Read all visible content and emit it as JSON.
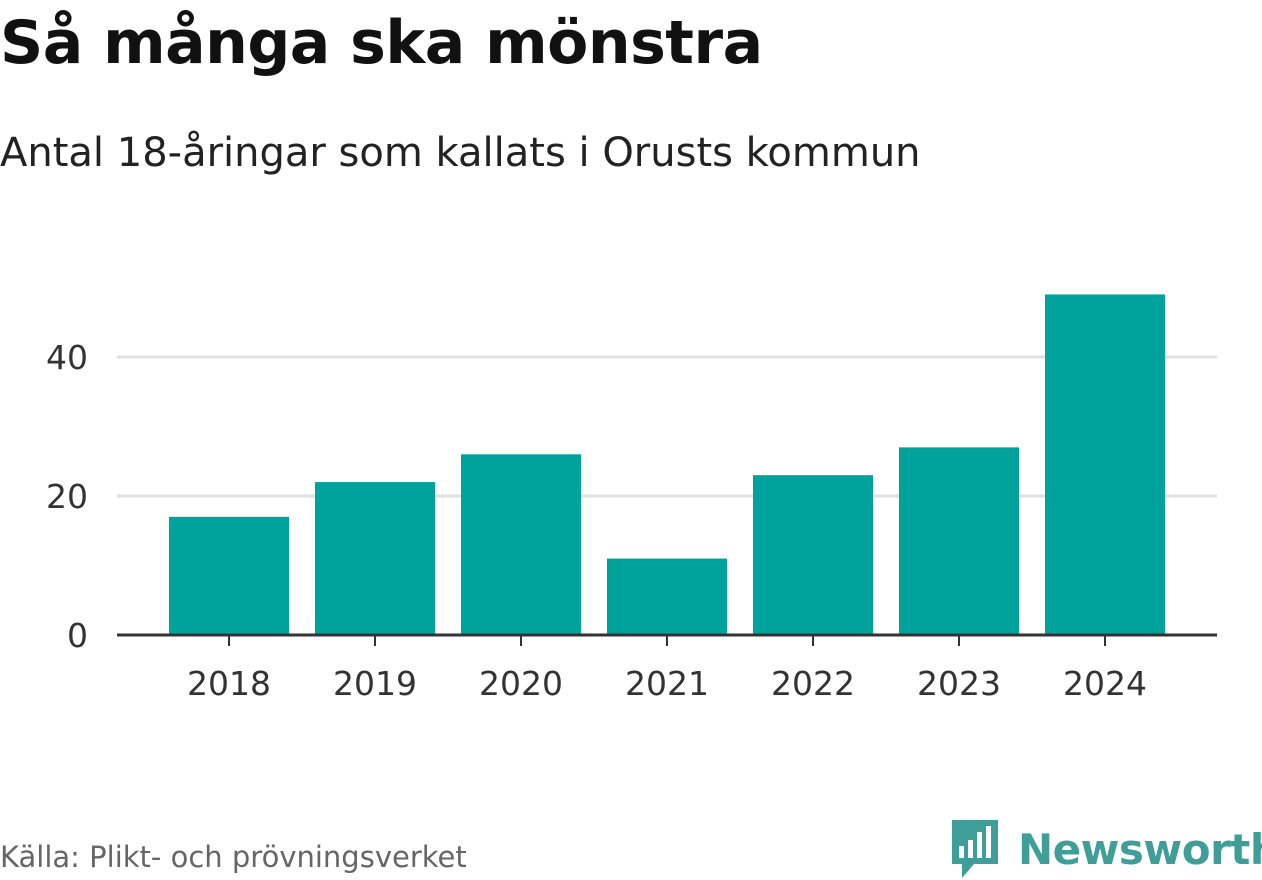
{
  "chart_data": {
    "type": "bar",
    "title": "Så många ska mönstra",
    "subtitle": "Antal 18-åringar som kallats i Orusts kommun",
    "categories": [
      "2018",
      "2019",
      "2020",
      "2021",
      "2022",
      "2023",
      "2024"
    ],
    "values": [
      17,
      22,
      26,
      11,
      23,
      27,
      49
    ],
    "ylim": [
      0,
      52
    ],
    "yticks": [
      0,
      20,
      40
    ],
    "xlabel": "",
    "ylabel": "",
    "grid": true,
    "bar_color": "#00a39b",
    "gridline_color": "#e0e0e0",
    "axis_color": "#333333"
  },
  "footer": {
    "source": "Källa: Plikt- och prövningsverket",
    "brand": "Newsworthy",
    "brand_icon": "newsworthy-logo-icon",
    "brand_color": "#3f9e97"
  }
}
